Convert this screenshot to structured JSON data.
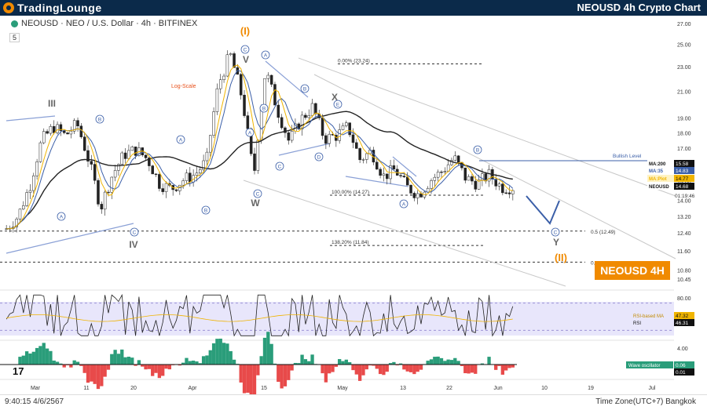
{
  "header": {
    "brand": "TradingLounge",
    "chart_title": "NEOUSD 4h Crypto Chart"
  },
  "symbol_line": "NEOUSD · NEO / U.S. Dollar · 4h · BITFINEX",
  "indicator_count": "5",
  "badge": "NEOUSD 4H",
  "footer": {
    "clock": "9:40:15 4/6/2567",
    "timezone": "Time Zone(UTC+7) Bangkok"
  },
  "colors": {
    "up": "#2a9d7a",
    "down": "#e84a4a",
    "accent": "#f08a00",
    "wave": "#3b5fa8",
    "header_bg": "#0b2a4a"
  },
  "chart_data": [
    {
      "type": "line",
      "subtype": "candlestick",
      "scale": "log",
      "annotation_log": "Log-Scale",
      "ylim": [
        10.0,
        27.0
      ],
      "y_ticks": [
        "27.00",
        "25.00",
        "23.00",
        "21.00",
        "19.00",
        "18.00",
        "17.00",
        "16.00",
        "15.00",
        "14.00",
        "13.20",
        "12.40",
        "11.60",
        "10.80",
        "10.45"
      ],
      "x_ticks": [
        "Mar",
        "11",
        "20",
        "Apr",
        "15",
        "May",
        "13",
        "22",
        "Jun",
        "10",
        "19",
        "Jul"
      ],
      "price_close_approx": [
        12.6,
        13.2,
        14.8,
        17.5,
        18.4,
        17.8,
        18.6,
        16.2,
        13.6,
        15.4,
        16.6,
        16.9,
        16.3,
        14.9,
        14.6,
        15.1,
        15.4,
        16.2,
        21.5,
        24.1,
        20.5,
        15.2,
        22.7,
        19.6,
        17.4,
        18.9,
        19.8,
        17.6,
        17.8,
        18.4,
        16.3,
        16.8,
        15.3,
        15.7,
        14.7,
        14.3,
        15.1,
        15.6,
        16.4,
        15.2,
        14.9,
        15.4,
        14.7,
        14.7
      ],
      "series": [
        {
          "name": "MA:200",
          "value": "15.58",
          "color": "#222222"
        },
        {
          "name": "MA:35",
          "value": "14.83",
          "color": "#3b5fa8"
        },
        {
          "name": "MA:Plot",
          "value": "14.77",
          "color": "#f0b400"
        },
        {
          "name": "NEOUSD",
          "value": "14.68",
          "color": "#111111"
        }
      ],
      "countdown": "01:19:46",
      "levels": [
        {
          "label": "0.00% (23.24)"
        },
        {
          "label": "100.00% (14.27)"
        },
        {
          "label": "138.20% (11.84)"
        },
        {
          "label": "0.5 (12.49)"
        },
        {
          "label": "0.618 (11.13)"
        },
        {
          "label": "Bullish Level"
        }
      ],
      "wave_labels": [
        "(I)",
        "III",
        "IV",
        "V",
        "W",
        "X",
        "Y",
        "(II)",
        "A",
        "B",
        "C",
        "D",
        "E"
      ]
    },
    {
      "type": "line",
      "name": "RSI",
      "ylim": [
        20,
        80
      ],
      "y_ticks": [
        "80.00"
      ],
      "series": [
        {
          "name": "RSI-based MA",
          "value": "47.32",
          "color": "#f0b400"
        },
        {
          "name": "RSI",
          "value": "46.31",
          "color": "#222222"
        }
      ]
    },
    {
      "type": "bar",
      "name": "Wave oscillator",
      "y_ticks": [
        "4.00"
      ],
      "series": [
        {
          "name": "Wave oscillator",
          "value": "0.06",
          "color": "#2a9d7a"
        },
        {
          "name": "signal",
          "value": "0.01",
          "color": "#2a9d7a"
        }
      ]
    }
  ]
}
